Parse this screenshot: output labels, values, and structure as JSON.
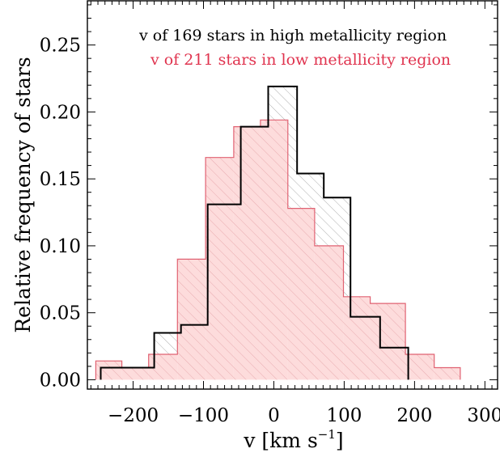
{
  "chart_data": {
    "type": "histogram",
    "xlabel": "v [km s",
    "xlabel_sup": "−1",
    "xlabel_tail": "]",
    "ylabel": "Relative frequency of stars",
    "xlim": [
      -265,
      318
    ],
    "ylim": [
      -0.007,
      0.283
    ],
    "x_major_ticks": [
      -200,
      -100,
      0,
      100,
      200,
      300
    ],
    "x_tick_labels": [
      "−200",
      "−100",
      "0",
      "100",
      "200",
      "300"
    ],
    "y_major_ticks": [
      0.0,
      0.05,
      0.1,
      0.15,
      0.2,
      0.25
    ],
    "y_tick_labels": [
      "0.00",
      "0.05",
      "0.10",
      "0.15",
      "0.20",
      "0.25"
    ],
    "legend": [
      {
        "text": "v of 169 stars in high metallicity region",
        "color": "#000000"
      },
      {
        "text": "v of 211 stars in low metallicity region",
        "color": "#e0344f"
      }
    ],
    "series": [
      {
        "name": "high metallicity",
        "style": "hatched outline",
        "line_color": "#000000",
        "hatch_color": "#9a9a9a",
        "edges": [
          -246,
          -208,
          -170,
          -132,
          -94,
          -47,
          -8,
          33,
          71,
          109,
          151,
          191
        ],
        "values": [
          0.009,
          0.009,
          0.035,
          0.041,
          0.131,
          0.189,
          0.219,
          0.154,
          0.136,
          0.047,
          0.024
        ]
      },
      {
        "name": "low metallicity",
        "style": "filled outline",
        "line_color": "#e06272",
        "fill_color": "#fddcdc",
        "hatch_color": "#e3a0a4",
        "edges": [
          -253,
          -216,
          -178,
          -137,
          -97,
          -57,
          -19,
          20,
          58,
          99,
          137,
          187,
          228,
          265
        ],
        "values": [
          0.014,
          0.009,
          0.019,
          0.09,
          0.166,
          0.189,
          0.194,
          0.128,
          0.1,
          0.062,
          0.057,
          0.019,
          0.009
        ]
      }
    ]
  }
}
